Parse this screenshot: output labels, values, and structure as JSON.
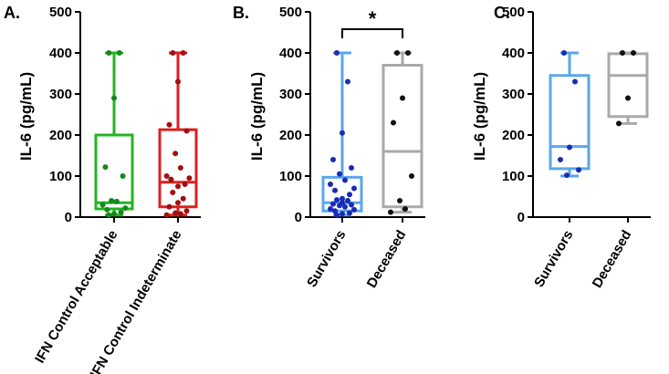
{
  "chart_data": [
    {
      "type": "box",
      "panel_label": "A.",
      "ylabel": "IL-6 (pg/mL)",
      "ylim": [
        0,
        500
      ],
      "yticks": [
        0,
        100,
        200,
        300,
        400,
        500
      ],
      "series": [
        {
          "name": "IFN Control Acceptable",
          "color": "#22b522",
          "point_color": "#13881b",
          "min": 5,
          "q1": 20,
          "median": 35,
          "q3": 200,
          "max": 400,
          "points": [
            400,
            400,
            290,
            122,
            100,
            40,
            38,
            30,
            22,
            18,
            12,
            8,
            5
          ]
        },
        {
          "name": "IFN Control Indeterminate",
          "color": "#dd1f1f",
          "point_color": "#a01010",
          "min": 5,
          "q1": 25,
          "median": 85,
          "q3": 213,
          "max": 400,
          "points": [
            400,
            400,
            330,
            225,
            210,
            155,
            120,
            100,
            95,
            92,
            80,
            75,
            60,
            45,
            35,
            25,
            15,
            10,
            8,
            5
          ]
        }
      ]
    },
    {
      "type": "box",
      "panel_label": "B.",
      "ylabel": "IL-6 (pg/mL)",
      "ylim": [
        0,
        500
      ],
      "yticks": [
        0,
        100,
        200,
        300,
        400,
        500
      ],
      "significance": {
        "text": "*",
        "between": [
          0,
          1
        ]
      },
      "series": [
        {
          "name": "Survivors",
          "color": "#5aa7ea",
          "point_color": "#1a2bb3",
          "min": 5,
          "q1": 15,
          "median": 35,
          "q3": 97,
          "max": 400,
          "points": [
            400,
            330,
            205,
            140,
            120,
            105,
            90,
            80,
            70,
            65,
            55,
            45,
            42,
            40,
            35,
            32,
            30,
            28,
            25,
            20,
            18,
            15,
            10,
            8,
            5
          ]
        },
        {
          "name": "Deceased",
          "color": "#a9a9a9",
          "point_color": "#111111",
          "min": 12,
          "q1": 25,
          "median": 160,
          "q3": 370,
          "max": 400,
          "points": [
            400,
            400,
            290,
            230,
            100,
            40,
            20,
            12
          ]
        }
      ]
    },
    {
      "type": "box",
      "panel_label": "C.",
      "ylabel": "IL-6 (pg/mL)",
      "ylim": [
        0,
        500
      ],
      "yticks": [
        0,
        100,
        200,
        300,
        400,
        500
      ],
      "series": [
        {
          "name": "Survivors",
          "color": "#5aa7ea",
          "point_color": "#1a2bb3",
          "min": 100,
          "q1": 118,
          "median": 172,
          "q3": 345,
          "max": 400,
          "points": [
            400,
            330,
            170,
            140,
            115,
            102
          ]
        },
        {
          "name": "Deceased",
          "color": "#a9a9a9",
          "point_color": "#111111",
          "min": 228,
          "q1": 245,
          "median": 345,
          "q3": 398,
          "max": 400,
          "points": [
            400,
            400,
            290,
            228
          ]
        }
      ]
    }
  ]
}
